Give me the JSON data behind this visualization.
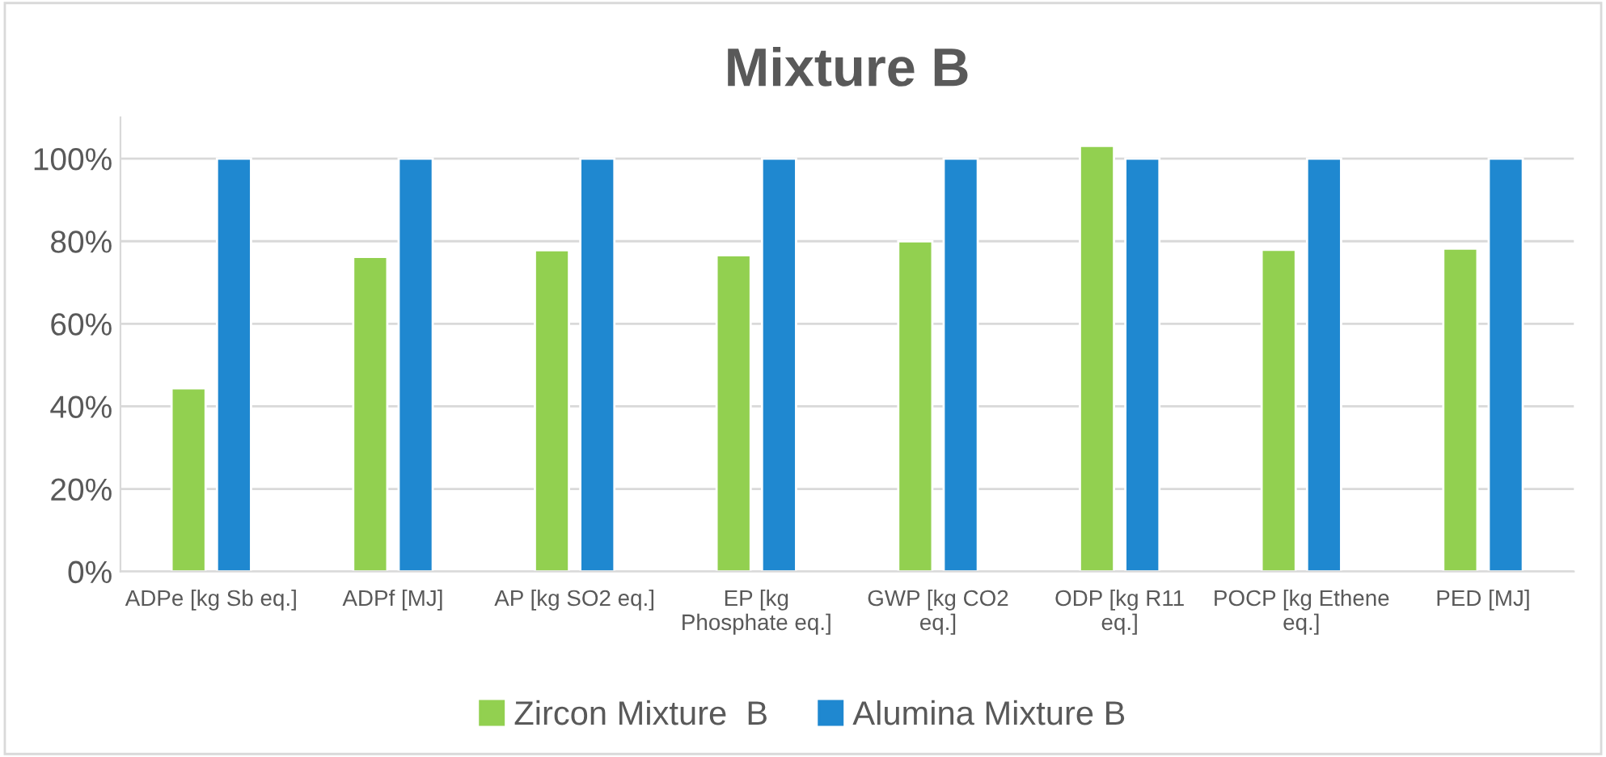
{
  "chart_data": {
    "type": "bar",
    "title": "Mixture B",
    "categories": [
      "ADPe [kg Sb eq.]",
      "ADPf [MJ]",
      "AP [kg SO2 eq.]",
      "EP [kg\nPhosphate eq.]",
      "GWP [kg CO2\neq.]",
      "ODP [kg R11\neq.]",
      "POCP [kg Ethene\neq.]",
      "PED [MJ]"
    ],
    "series": [
      {
        "name": "Zircon Mixture  B",
        "color": "#92d050",
        "values": [
          44.4,
          76.2,
          77.8,
          76.6,
          80.0,
          103.1,
          77.9,
          78.2
        ]
      },
      {
        "name": "Alumina Mixture B",
        "color": "#1f88d0",
        "values": [
          100,
          100,
          100,
          100,
          100,
          100,
          100,
          100
        ]
      }
    ],
    "ylim": [
      0,
      110
    ],
    "yticks": [
      {
        "value": 0,
        "label": "0%"
      },
      {
        "value": 20,
        "label": "20%"
      },
      {
        "value": 40,
        "label": "40%"
      },
      {
        "value": 60,
        "label": "60%"
      },
      {
        "value": 80,
        "label": "80%"
      },
      {
        "value": 100,
        "label": "100%"
      }
    ],
    "grid": "y",
    "legend": "bottom"
  }
}
